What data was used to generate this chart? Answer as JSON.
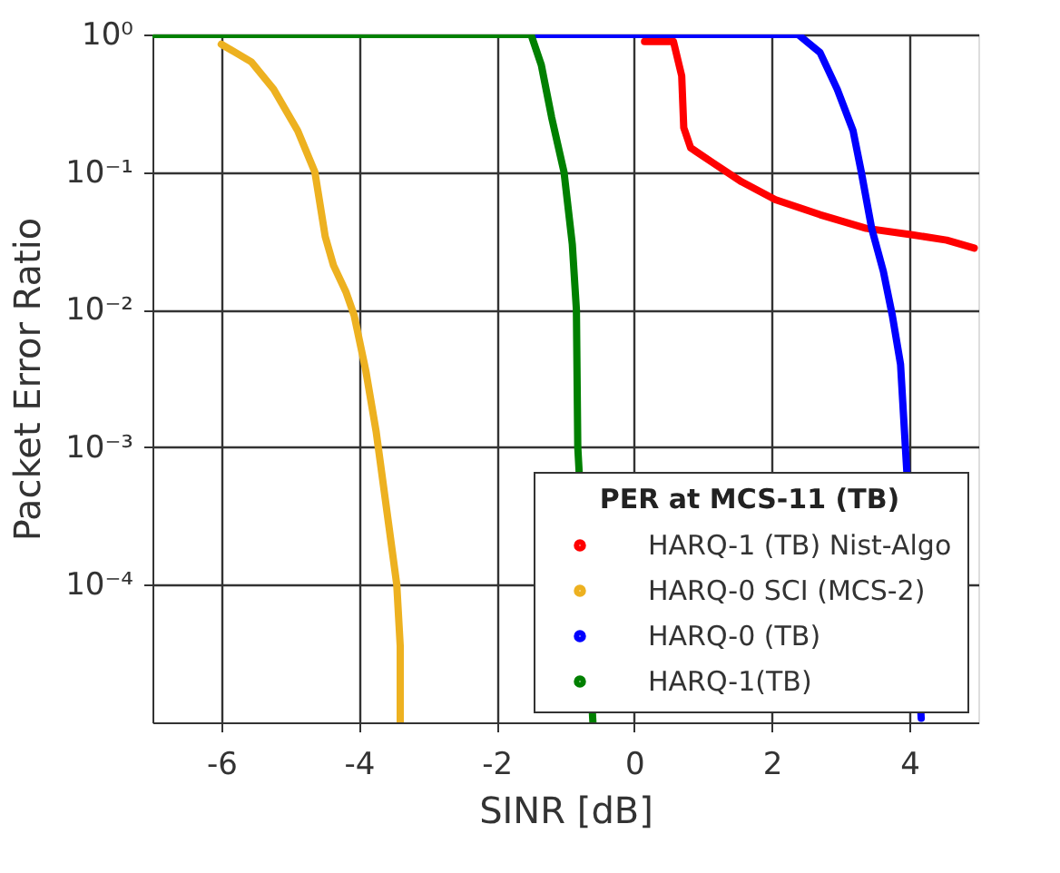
{
  "chart_data": {
    "type": "line",
    "xlabel": "SINR [dB]",
    "ylabel": "Packet Error Ratio",
    "legend_title": "PER at MCS-11 (TB)",
    "legend": "bottom right",
    "grid": true,
    "log": "y",
    "marker": "none",
    "line_style": "solid",
    "xlim": [
      -7,
      5
    ],
    "xticks": [
      -6,
      -4,
      -2,
      0,
      2,
      4
    ],
    "ylim": [
      1e-05,
      1
    ],
    "yticks": [
      {
        "value": 1,
        "label": "10⁰"
      },
      {
        "value": 0.1,
        "label": "10⁻¹"
      },
      {
        "value": 0.01,
        "label": "10⁻²"
      },
      {
        "value": 0.001,
        "label": "10⁻³"
      },
      {
        "value": 0.0001,
        "label": "10⁻⁴"
      }
    ],
    "series": [
      {
        "name": "HARQ-1 (TB) Nist-Algo",
        "color": "#ff0000",
        "x": [
          0.15,
          0.57,
          0.69,
          0.72,
          0.82,
          1.14,
          1.56,
          2.05,
          2.7,
          3.37,
          4.04,
          4.54,
          4.94
        ],
        "values": [
          0.89,
          0.89,
          0.5,
          0.21,
          0.15,
          0.117,
          0.085,
          0.063,
          0.049,
          0.039,
          0.035,
          0.032,
          0.028
        ]
      },
      {
        "name": "HARQ-0 SCI (MCS-2)",
        "color": "#edb120",
        "x": [
          -6,
          -5.56,
          -5.24,
          -4.89,
          -4.64,
          -4.49,
          -4.37,
          -4.19,
          -4.07,
          -3.9,
          -3.75,
          -3.57,
          -3.45,
          -3.4,
          -3.4
        ],
        "values": [
          0.85,
          0.63,
          0.4,
          0.2,
          0.1,
          0.034,
          0.021,
          0.0135,
          0.0091,
          0.0036,
          0.0013,
          0.00028,
          0.0001,
          3.6e-05,
          1e-05
        ]
      },
      {
        "name": "HARQ-0 (TB)",
        "color": "#0000ff",
        "x": [
          -1.5,
          2.38,
          2.7,
          2.95,
          3.18,
          3.3,
          3.45,
          3.62,
          3.75,
          3.87,
          4.17
        ],
        "values": [
          1,
          1,
          0.74,
          0.4,
          0.2,
          0.1,
          0.039,
          0.019,
          0.0091,
          0.004,
          1.07e-05
        ]
      },
      {
        "name": "HARQ-1(TB)",
        "color": "#008000",
        "x": [
          -7,
          -1.5,
          -1.35,
          -1.2,
          -1.02,
          -0.9,
          -0.84,
          -0.82,
          -0.78,
          -0.6
        ],
        "values": [
          1,
          1,
          0.6,
          0.25,
          0.1,
          0.03,
          0.01,
          0.001,
          null,
          1e-05
        ]
      }
    ]
  }
}
